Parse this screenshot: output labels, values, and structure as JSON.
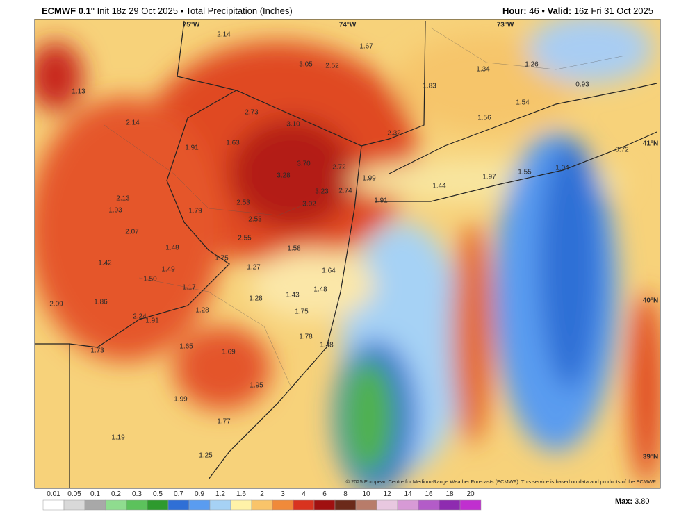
{
  "header": {
    "model": "ECMWF 0.1°",
    "run": "Init 18z 29 Oct 2025 • Total Precipitation (Inches)",
    "hour_label": "Hour:",
    "hour": "46 •",
    "valid_label": "Valid:",
    "valid": "16z Fri 31 Oct 2025"
  },
  "map": {
    "axis_labels": [
      "75°W",
      "74°W",
      "73°W",
      "41°N",
      "40°N",
      "39°N"
    ],
    "point_labels": [
      "2.14",
      "1.67",
      "3.05",
      "2.52",
      "1.34",
      "1.26",
      "1.13",
      "1.83",
      "0.93",
      "2.73",
      "3.10",
      "1.54",
      "1.56",
      "2.14",
      "2.32",
      "1.91",
      "1.63",
      "0.72",
      "3.70",
      "2.72",
      "1.55",
      "1.04",
      "3.28",
      "1.99",
      "1.97",
      "1.44",
      "3.23",
      "2.74",
      "2.13",
      "1.91",
      "2.53",
      "3.02",
      "1.93",
      "1.79",
      "2.53",
      "2.07",
      "2.55",
      "1.48",
      "1.58",
      "1.75",
      "1.42",
      "1.49",
      "1.27",
      "1.64",
      "1.50",
      "1.17",
      "1.48",
      "1.28",
      "1.43",
      "2.09",
      "1.86",
      "1.28",
      "1.75",
      "2.24",
      "1.91",
      "1.78",
      "1.48",
      "1.73",
      "1.65",
      "1.69",
      "1.95",
      "1.99",
      "1.77",
      "1.19",
      "1.25"
    ],
    "copyright": "© 2025 European Centre for Medium-Range Weather Forecasts (ECMWF). This service is based on data and products of the ECMWF."
  },
  "colorbar": {
    "ticks": [
      "0.01",
      "0.05",
      "0.1",
      "0.2",
      "0.3",
      "0.5",
      "0.7",
      "0.9",
      "1.2",
      "1.6",
      "2",
      "3",
      "4",
      "6",
      "8",
      "10",
      "12",
      "14",
      "16",
      "18",
      "20"
    ],
    "colors": [
      "#ffffff",
      "#d9d9d9",
      "#a8a8a8",
      "#8fdc8f",
      "#5cc25c",
      "#2e9a2e",
      "#2f6fd6",
      "#5a9cf0",
      "#a6d2f5",
      "#fff2a8",
      "#f9c46a",
      "#f08a3a",
      "#d9331f",
      "#a01010",
      "#6b2a1a",
      "#b87c6a",
      "#e8c8e0",
      "#d79ad6",
      "#b35cc8",
      "#8e2bb0",
      "#c02fcf"
    ],
    "max_label": "Max:",
    "max": "3.80"
  }
}
